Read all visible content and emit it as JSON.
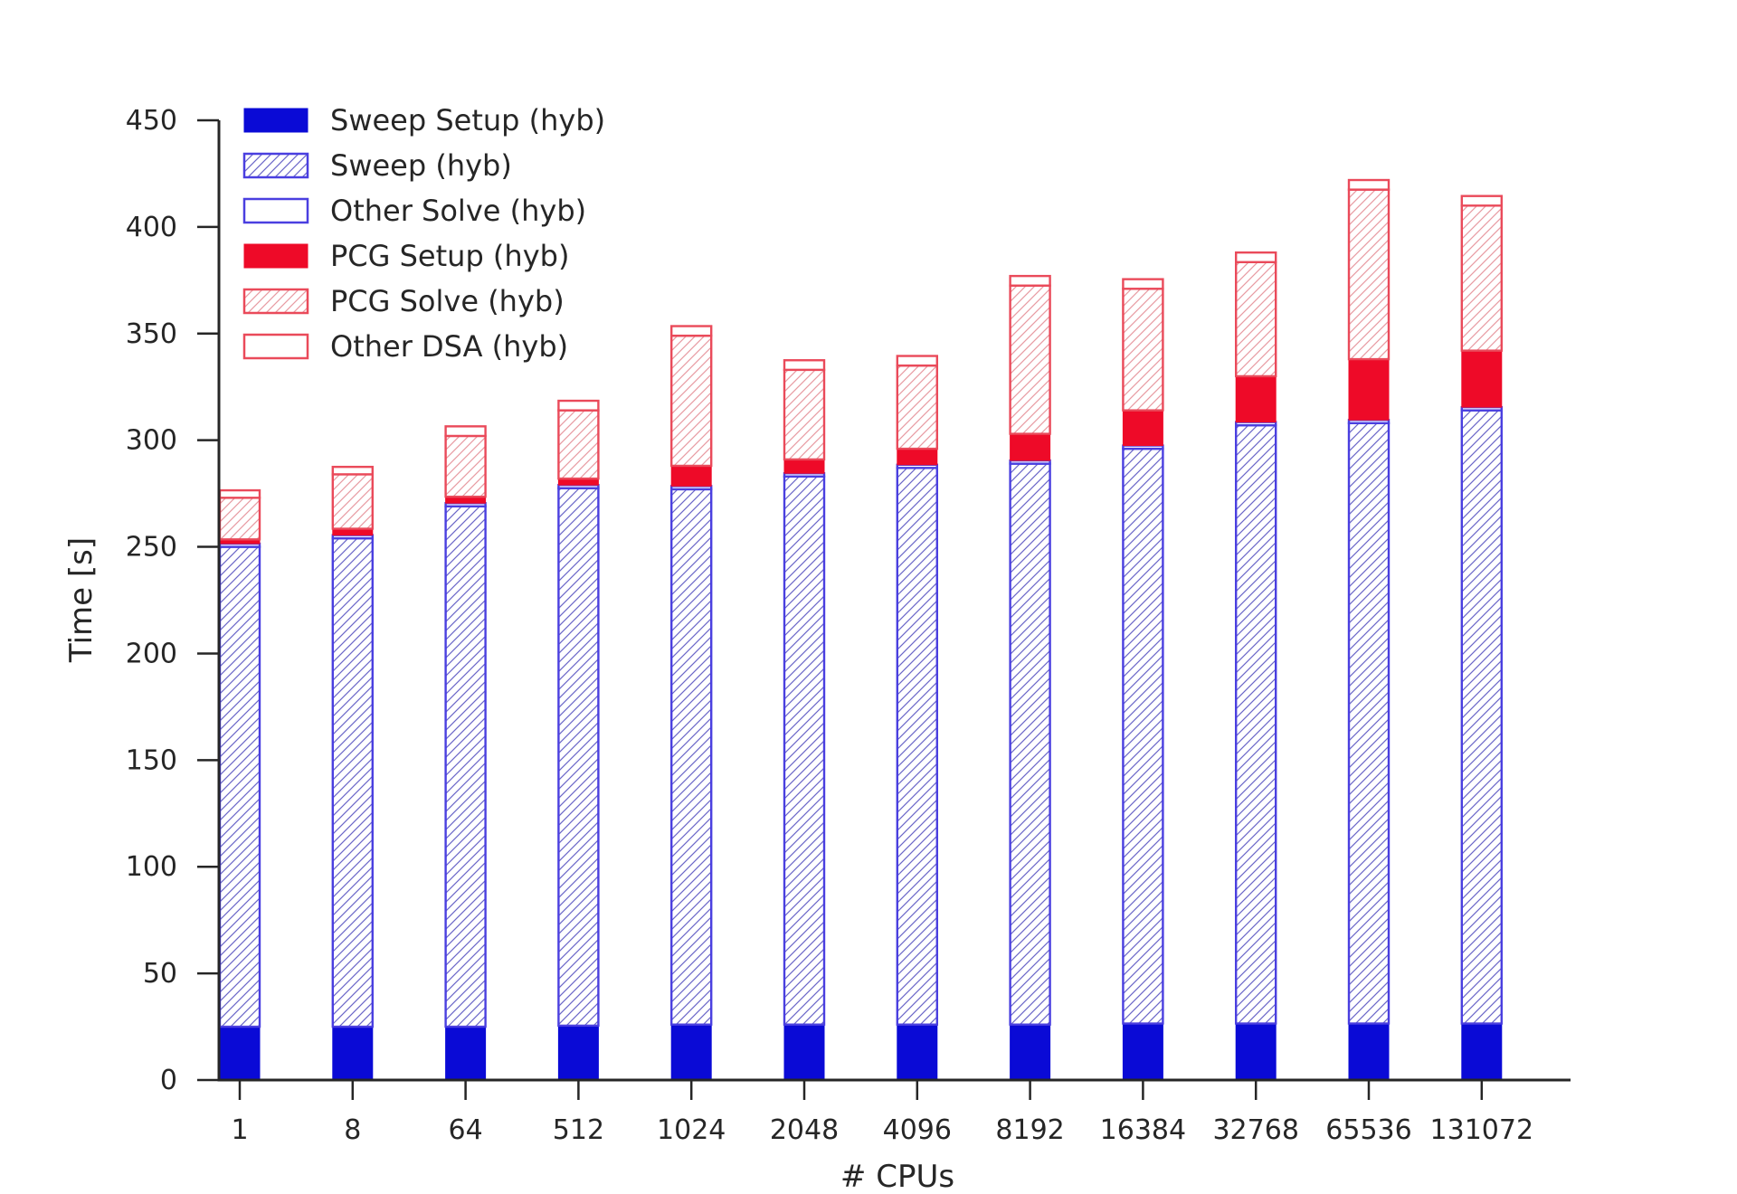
{
  "chart_data": {
    "type": "bar",
    "stacked": true,
    "xlabel": "# CPUs",
    "ylabel": "Time [s]",
    "ylim": [
      0,
      450
    ],
    "yticks": [
      "0",
      "50",
      "100",
      "150",
      "200",
      "250",
      "300",
      "350",
      "400",
      "450"
    ],
    "grid": false,
    "legend_position": "top-left",
    "categories": [
      "1",
      "8",
      "64",
      "512",
      "1024",
      "2048",
      "4096",
      "8192",
      "16384",
      "32768",
      "65536",
      "131072"
    ],
    "series": [
      {
        "name": "Sweep Setup (hyb)",
        "color": "#0a0ad6",
        "style": "solid",
        "values": [
          25,
          25,
          25,
          25.5,
          26,
          26,
          26,
          26,
          26.5,
          26.5,
          26.5,
          26.5
        ]
      },
      {
        "name": "Sweep (hyb)",
        "color": "#4a3fe0",
        "style": "hatch",
        "values": [
          225,
          229,
          244,
          252,
          251,
          257,
          261,
          263,
          269.5,
          280.5,
          281.5,
          287.5
        ]
      },
      {
        "name": "Other Solve (hyb)",
        "color": "#4a3fe0",
        "style": "outline",
        "values": [
          1.5,
          1.5,
          1.5,
          1.5,
          1.5,
          1.5,
          1.5,
          1.5,
          1.5,
          1.5,
          1.5,
          1.5
        ]
      },
      {
        "name": "PCG Setup (hyb)",
        "color": "#ee0a28",
        "style": "solid",
        "values": [
          2,
          3,
          3,
          3,
          9.5,
          6.5,
          7.5,
          12.5,
          16.5,
          21.5,
          28.5,
          26.5
        ]
      },
      {
        "name": "PCG Solve (hyb)",
        "color": "#ea4a5a",
        "style": "hatch",
        "values": [
          19.5,
          25.5,
          28.5,
          32,
          61,
          42,
          39,
          69.5,
          57,
          53.5,
          79.5,
          68
        ]
      },
      {
        "name": "Other DSA (hyb)",
        "color": "#ea4a5a",
        "style": "outline",
        "values": [
          3.5,
          3.5,
          4.5,
          4.5,
          4.5,
          4.5,
          4.5,
          4.5,
          4.5,
          4.5,
          4.5,
          4.5
        ]
      }
    ]
  }
}
